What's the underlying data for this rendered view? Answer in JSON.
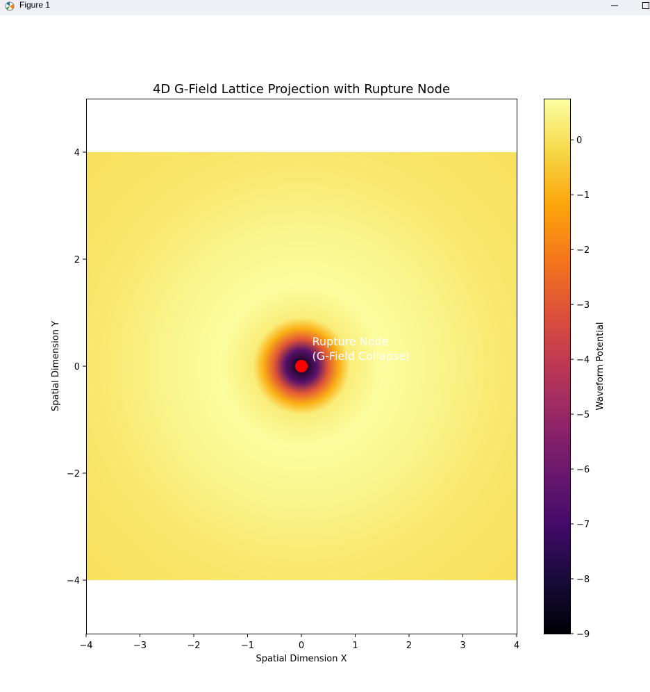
{
  "window": {
    "title": "Figure 1",
    "icons": {
      "app": "matplotlib-figure-icon",
      "minimize": "minimize-icon",
      "maximize": "maximize-icon"
    }
  },
  "chart_data": {
    "type": "heatmap",
    "title": "4D G-Field Lattice Projection with Rupture Node",
    "xlabel": "Spatial Dimension X",
    "ylabel": "Spatial Dimension Y",
    "xlim": [
      -4,
      4
    ],
    "ylim": [
      -5,
      5
    ],
    "data_extent": {
      "x": [
        -4,
        4
      ],
      "y": [
        -4,
        4
      ]
    },
    "x_ticks": [
      -4,
      -3,
      -2,
      -1,
      0,
      1,
      2,
      3,
      4
    ],
    "x_tick_labels": [
      "−4",
      "−3",
      "−2",
      "−1",
      "0",
      "1",
      "2",
      "3",
      "4"
    ],
    "y_ticks": [
      -4,
      -2,
      0,
      2,
      4
    ],
    "y_tick_labels": [
      "−4",
      "−2",
      "0",
      "2",
      "4"
    ],
    "grid": false,
    "colormap": "inferno",
    "colorbar": {
      "label": "Waveform Potential",
      "range": [
        -9,
        0.75
      ],
      "ticks": [
        0,
        -1,
        -2,
        -3,
        -4,
        -5,
        -6,
        -7,
        -8,
        -9
      ],
      "tick_labels": [
        "0",
        "−1",
        "−2",
        "−3",
        "−4",
        "−5",
        "−6",
        "−7",
        "−8",
        "−9"
      ]
    },
    "field_profile": [
      {
        "r": 0.0,
        "value": -9
      },
      {
        "r": 0.3,
        "value": -6.5
      },
      {
        "r": 0.5,
        "value": -3
      },
      {
        "r": 0.7,
        "value": -1
      },
      {
        "r": 0.9,
        "value": 0.3
      },
      {
        "r": 1.5,
        "value": 0.7
      },
      {
        "r": 2.5,
        "value": 0.5
      },
      {
        "r": 3.5,
        "value": 0.25
      },
      {
        "r": 4.5,
        "value": 0.1
      },
      {
        "r": 5.7,
        "value": 0.0
      }
    ],
    "marker": {
      "x": 0,
      "y": 0,
      "color": "#ff0000"
    },
    "annotation": {
      "line1": "Rupture Node",
      "line2": "(G-Field Collapse)",
      "x": 0.2,
      "y": 0.35,
      "color": "#ffffff"
    }
  }
}
